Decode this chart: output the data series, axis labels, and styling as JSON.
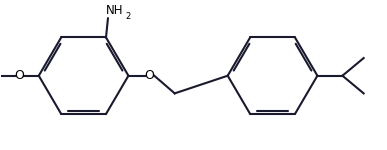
{
  "bg_color": "#ffffff",
  "bond_color": "#1a1a2e",
  "text_color": "#000000",
  "lw": 1.5,
  "dbo": 0.018,
  "shrink": 0.15,
  "r1cx": 0.21,
  "r1cy": 0.5,
  "r1r": 0.3,
  "r2cx": 0.7,
  "r2cy": 0.5,
  "r2r": 0.28,
  "xlim": [
    0,
    1
  ],
  "ylim": [
    0,
    1
  ]
}
